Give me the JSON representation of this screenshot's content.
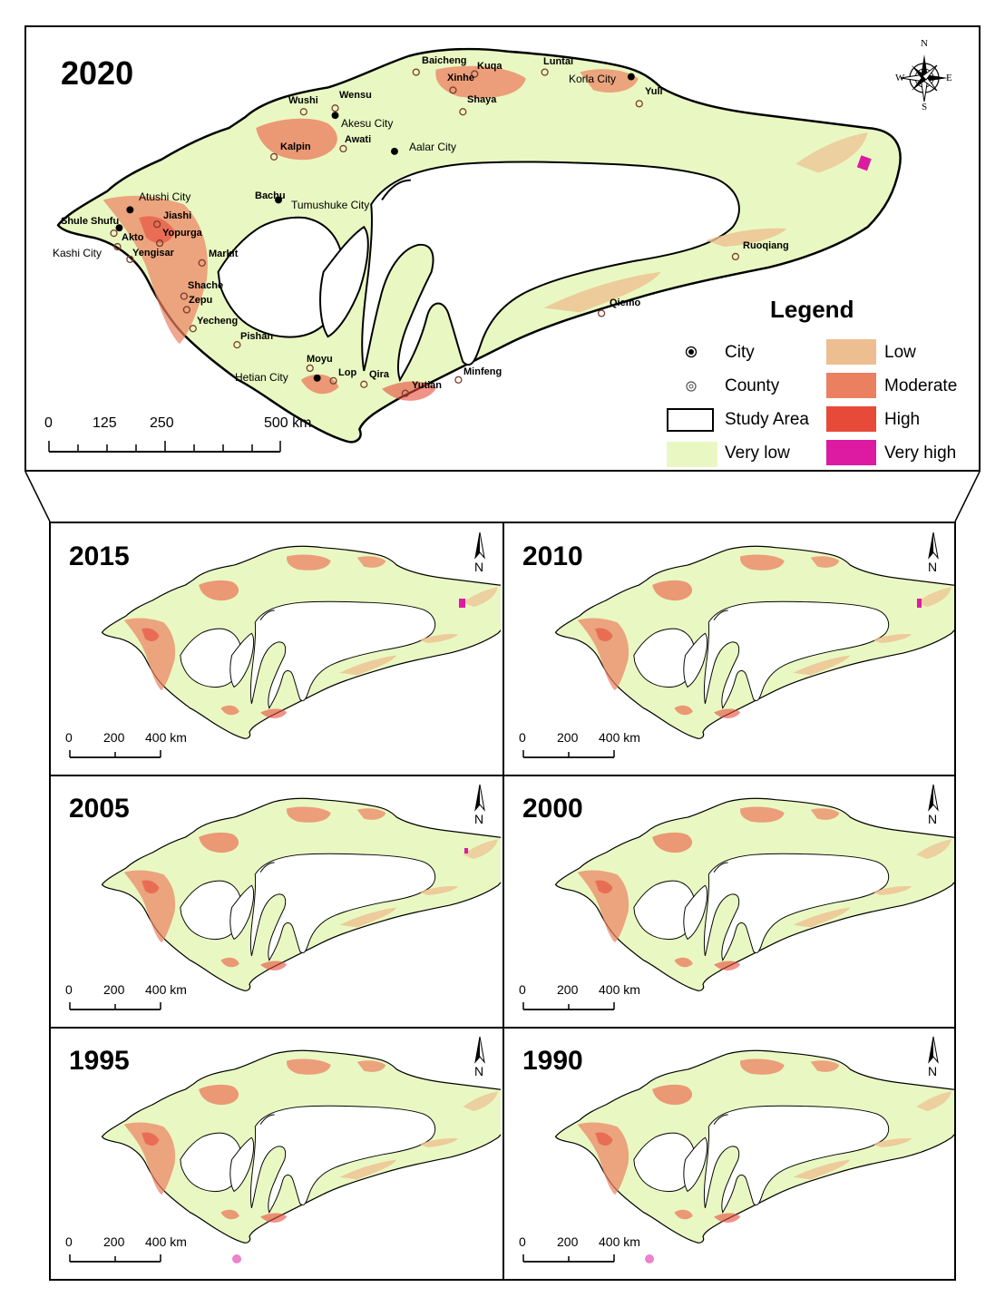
{
  "main_map": {
    "year": "2020",
    "legend": {
      "title": "Legend",
      "items": [
        {
          "label": "City",
          "kind": "city-symbol"
        },
        {
          "label": "County",
          "kind": "county-symbol"
        },
        {
          "label": "Study Area",
          "kind": "outline"
        },
        {
          "label": "Very low",
          "color": "#e9f8c2"
        },
        {
          "label": "Low",
          "color": "#edbf90"
        },
        {
          "label": "Moderate",
          "color": "#eb8060"
        },
        {
          "label": "High",
          "color": "#e84a3a"
        },
        {
          "label": "Very high",
          "color": "#dd1aa2"
        }
      ]
    },
    "scale_bar": {
      "ticks": [
        "0",
        "125",
        "250",
        "500 km"
      ]
    },
    "compass": {
      "n": "N",
      "s": "S",
      "e": "E",
      "w": "W"
    },
    "cities": [
      "Akesu City",
      "Aalar City",
      "Atushi City",
      "Tumushuke City",
      "Kashi City",
      "Hetian City",
      "Korla City"
    ],
    "counties": [
      "Baicheng",
      "Kuqa",
      "Luntai",
      "Xinhe",
      "Shaya",
      "Yuli",
      "Wushi",
      "Wensu",
      "Awati",
      "Kalpin",
      "Bachu",
      "Jiashi",
      "Shule",
      "Shufu",
      "Akto",
      "Yopurga",
      "Yengisar",
      "Markit",
      "Shache",
      "Zepu",
      "Yecheng",
      "Pishan",
      "Moyu",
      "Lop",
      "Qira",
      "Yutian",
      "Minfeng",
      "Qiemo",
      "Ruoqiang"
    ]
  },
  "panels": [
    {
      "year": "2015",
      "scale_ticks": [
        "0",
        "200",
        "400 km"
      ],
      "north": "N"
    },
    {
      "year": "2010",
      "scale_ticks": [
        "0",
        "200",
        "400 km"
      ],
      "north": "N"
    },
    {
      "year": "2005",
      "scale_ticks": [
        "0",
        "200",
        "400 km"
      ],
      "north": "N"
    },
    {
      "year": "2000",
      "scale_ticks": [
        "0",
        "200",
        "400 km"
      ],
      "north": "N"
    },
    {
      "year": "1995",
      "scale_ticks": [
        "0",
        "200",
        "400 km"
      ],
      "north": "N"
    },
    {
      "year": "1990",
      "scale_ticks": [
        "0",
        "200",
        "400 km"
      ],
      "north": "N"
    }
  ]
}
